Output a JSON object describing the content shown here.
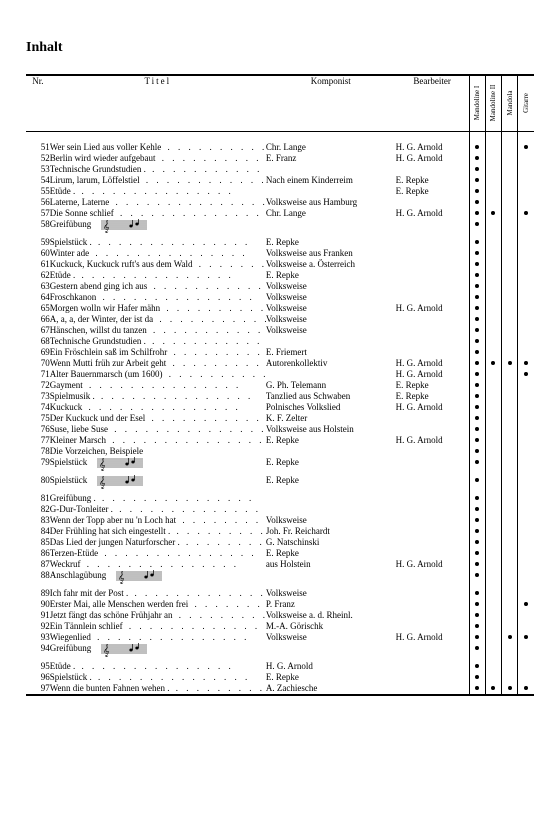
{
  "heading": "Inhalt",
  "headers": {
    "nr": "Nr.",
    "title": "Titel",
    "komponist": "Komponist",
    "bearbeiter": "Bearbeiter",
    "cols": [
      "Mandoline I",
      "Mandoline II",
      "Mandola",
      "Gitarre"
    ]
  },
  "leader_dots": ".  .  .  .  .  .  .  .  .  .  .  .  .  .  .",
  "rows": [
    {
      "nr": "51",
      "title": "Wer sein Lied aus voller Kehle",
      "komp": "Chr. Lange",
      "bearb": "H. G. Arnold",
      "dots": [
        1,
        0,
        0,
        1
      ],
      "leaders": true
    },
    {
      "nr": "52",
      "title": "Berlin wird wieder aufgebaut",
      "komp": "E. Franz",
      "bearb": "H. G. Arnold",
      "dots": [
        1,
        0,
        0,
        0
      ],
      "leaders": true
    },
    {
      "nr": "53",
      "title": "Technische Grundstudien .",
      "komp": "",
      "bearb": "",
      "dots": [
        1,
        0,
        0,
        0
      ],
      "leaders": true
    },
    {
      "nr": "54",
      "title": "Lirum, larum, Löffelstiel",
      "komp": "Nach einem Kinderreim",
      "bearb": "E. Repke",
      "dots": [
        1,
        0,
        0,
        0
      ],
      "leaders": true
    },
    {
      "nr": "55",
      "title": "Etüde .",
      "komp": "",
      "bearb": "E. Repke",
      "dots": [
        1,
        0,
        0,
        0
      ],
      "leaders": true
    },
    {
      "nr": "56",
      "title": "Laterne, Laterne",
      "komp": "Volksweise aus Hamburg",
      "bearb": "",
      "dots": [
        1,
        0,
        0,
        0
      ],
      "leaders": true
    },
    {
      "nr": "57",
      "title": "Die Sonne schlief",
      "komp": "Chr. Lange",
      "bearb": "H. G. Arnold",
      "dots": [
        1,
        1,
        0,
        1
      ],
      "leaders": true
    },
    {
      "nr": "58",
      "title": "Greifübung",
      "komp": "",
      "bearb": "",
      "dots": [
        1,
        0,
        0,
        0
      ],
      "leaders": false,
      "music": true,
      "tall": true
    },
    {
      "nr": "59",
      "title": "Spielstück .",
      "komp": "E. Repke",
      "bearb": "",
      "dots": [
        1,
        0,
        0,
        0
      ],
      "leaders": true
    },
    {
      "nr": "60",
      "title": "Winter ade",
      "komp": "Volksweise aus Franken",
      "bearb": "",
      "dots": [
        1,
        0,
        0,
        0
      ],
      "leaders": true
    },
    {
      "nr": "61",
      "title": "Kuckuck, Kuckuck ruft's aus dem Wald",
      "komp": "Volksweise a. Österreich",
      "bearb": "",
      "dots": [
        1,
        0,
        0,
        0
      ],
      "leaders": true
    },
    {
      "nr": "62",
      "title": "Etüde .",
      "komp": "E. Repke",
      "bearb": "",
      "dots": [
        1,
        0,
        0,
        0
      ],
      "leaders": true
    },
    {
      "nr": "63",
      "title": "Gestern abend ging ich aus",
      "komp": "Volksweise",
      "bearb": "",
      "dots": [
        1,
        0,
        0,
        0
      ],
      "leaders": true
    },
    {
      "nr": "64",
      "title": "Froschkanon",
      "komp": "Volksweise",
      "bearb": "",
      "dots": [
        1,
        0,
        0,
        0
      ],
      "leaders": true
    },
    {
      "nr": "65",
      "title": "Morgen wolln wir Hafer mähn",
      "komp": "Volksweise",
      "bearb": "H. G. Arnold",
      "dots": [
        1,
        0,
        0,
        0
      ],
      "leaders": true
    },
    {
      "nr": "66",
      "title": "A, a, a, der Winter, der ist da",
      "komp": "Volksweise",
      "bearb": "",
      "dots": [
        1,
        0,
        0,
        0
      ],
      "leaders": true
    },
    {
      "nr": "67",
      "title": "Hänschen, willst du tanzen",
      "komp": "Volksweise",
      "bearb": "",
      "dots": [
        1,
        0,
        0,
        0
      ],
      "leaders": true
    },
    {
      "nr": "68",
      "title": "Technische Grundstudien .",
      "komp": "",
      "bearb": "",
      "dots": [
        1,
        0,
        0,
        0
      ],
      "leaders": true
    },
    {
      "nr": "69",
      "title": "Ein Fröschlein saß im Schilfrohr",
      "komp": "E. Friemert",
      "bearb": "",
      "dots": [
        1,
        0,
        0,
        0
      ],
      "leaders": true
    },
    {
      "nr": "70",
      "title": "Wenn Mutti früh zur Arbeit geht",
      "komp": "Autorenkollektiv",
      "bearb": "H. G. Arnold",
      "dots": [
        1,
        1,
        1,
        1
      ],
      "leaders": true
    },
    {
      "nr": "71",
      "title": "Alter Bauernmarsch (um 1600)",
      "komp": "",
      "bearb": "H. G. Arnold",
      "dots": [
        1,
        0,
        0,
        1
      ],
      "leaders": true
    },
    {
      "nr": "72",
      "title": "Gayment",
      "komp": "G. Ph. Telemann",
      "bearb": "E. Repke",
      "dots": [
        1,
        0,
        0,
        0
      ],
      "leaders": true
    },
    {
      "nr": "73",
      "title": "Spielmusik .",
      "komp": "Tanzlied aus Schwaben",
      "bearb": "E. Repke",
      "dots": [
        1,
        0,
        0,
        0
      ],
      "leaders": true
    },
    {
      "nr": "74",
      "title": "Kuckuck",
      "komp": "Polnisches Volkslied",
      "bearb": "H. G. Arnold",
      "dots": [
        1,
        0,
        0,
        0
      ],
      "leaders": true
    },
    {
      "nr": "75",
      "title": "Der Kuckuck und der Esel",
      "komp": "K. F. Zelter",
      "bearb": "",
      "dots": [
        1,
        0,
        0,
        0
      ],
      "leaders": true
    },
    {
      "nr": "76",
      "title": "Suse, liebe Suse",
      "komp": "Volksweise aus Holstein",
      "bearb": "",
      "dots": [
        1,
        0,
        0,
        0
      ],
      "leaders": true
    },
    {
      "nr": "77",
      "title": "Kleiner Marsch",
      "komp": "E. Repke",
      "bearb": "H. G. Arnold",
      "dots": [
        1,
        0,
        0,
        0
      ],
      "leaders": true
    },
    {
      "nr": "78",
      "title": "Die Vorzeichen, Beispiele",
      "komp": "",
      "bearb": "",
      "dots": [
        1,
        0,
        0,
        0
      ],
      "leaders": false
    },
    {
      "nr": "79",
      "title": "Spielstück",
      "komp": "E. Repke",
      "bearb": "",
      "dots": [
        1,
        0,
        0,
        0
      ],
      "leaders": false,
      "music": true,
      "tall": true
    },
    {
      "nr": "80",
      "title": "Spielstück",
      "komp": "E. Repke",
      "bearb": "",
      "dots": [
        1,
        0,
        0,
        0
      ],
      "leaders": false,
      "music": true,
      "tall": true
    },
    {
      "nr": "81",
      "title": "Greifübung .",
      "komp": "",
      "bearb": "",
      "dots": [
        1,
        0,
        0,
        0
      ],
      "leaders": true
    },
    {
      "nr": "82",
      "title": "G-Dur-Tonleiter .",
      "komp": "",
      "bearb": "",
      "dots": [
        1,
        0,
        0,
        0
      ],
      "leaders": true
    },
    {
      "nr": "83",
      "title": "Wenn der Topp aber nu 'n Loch hat",
      "komp": "Volksweise",
      "bearb": "",
      "dots": [
        1,
        0,
        0,
        0
      ],
      "leaders": true
    },
    {
      "nr": "84",
      "title": "Der Frühling hat sich eingestellt .",
      "komp": "Joh. Fr. Reichardt",
      "bearb": "",
      "dots": [
        1,
        0,
        0,
        0
      ],
      "leaders": true
    },
    {
      "nr": "85",
      "title": "Das Lied der jungen Naturforscher .",
      "komp": "G. Natschinski",
      "bearb": "",
      "dots": [
        1,
        0,
        0,
        0
      ],
      "leaders": true
    },
    {
      "nr": "86",
      "title": "Terzen-Etüde",
      "komp": "E. Repke",
      "bearb": "",
      "dots": [
        1,
        0,
        0,
        0
      ],
      "leaders": true
    },
    {
      "nr": "87",
      "title": "Weckruf",
      "komp": "aus Holstein",
      "bearb": "H. G. Arnold",
      "dots": [
        1,
        0,
        0,
        0
      ],
      "leaders": true
    },
    {
      "nr": "88",
      "title": "Anschlagübung",
      "komp": "",
      "bearb": "",
      "dots": [
        1,
        0,
        0,
        0
      ],
      "leaders": false,
      "music": true,
      "tall": true
    },
    {
      "nr": "89",
      "title": "Ich fahr mit der Post .",
      "komp": "Volksweise",
      "bearb": "",
      "dots": [
        1,
        0,
        0,
        0
      ],
      "leaders": true
    },
    {
      "nr": "90",
      "title": "Erster Mai, alle Menschen werden frei",
      "komp": "P. Franz",
      "bearb": "",
      "dots": [
        1,
        0,
        0,
        1
      ],
      "leaders": true
    },
    {
      "nr": "91",
      "title": "Jetzt fängt das schöne Frühjahr an",
      "komp": "Volksweise a. d. Rheinl.",
      "bearb": "",
      "dots": [
        1,
        0,
        0,
        0
      ],
      "leaders": true
    },
    {
      "nr": "92",
      "title": "Ein Tännlein schlief",
      "komp": "M.-A. Görischk",
      "bearb": "",
      "dots": [
        1,
        0,
        0,
        0
      ],
      "leaders": true
    },
    {
      "nr": "93",
      "title": "Wiegenlied",
      "komp": "Volksweise",
      "bearb": "H. G. Arnold",
      "dots": [
        1,
        0,
        1,
        1
      ],
      "leaders": true
    },
    {
      "nr": "94",
      "title": "Greifübung",
      "komp": "",
      "bearb": "",
      "dots": [
        1,
        0,
        0,
        0
      ],
      "leaders": false,
      "music": true,
      "tall": true
    },
    {
      "nr": "95",
      "title": "Etüde .",
      "komp": "H. G. Arnold",
      "bearb": "",
      "dots": [
        1,
        0,
        0,
        0
      ],
      "leaders": true
    },
    {
      "nr": "96",
      "title": "Spielstück .",
      "komp": "E. Repke",
      "bearb": "",
      "dots": [
        1,
        0,
        0,
        0
      ],
      "leaders": true
    },
    {
      "nr": "97",
      "title": "Wenn die bunten Fahnen wehen .",
      "komp": "A. Zachiesche",
      "bearb": "",
      "dots": [
        1,
        1,
        1,
        1
      ],
      "leaders": true
    }
  ],
  "music_svg": {
    "staff_color": "#000",
    "line_gap": 2
  }
}
